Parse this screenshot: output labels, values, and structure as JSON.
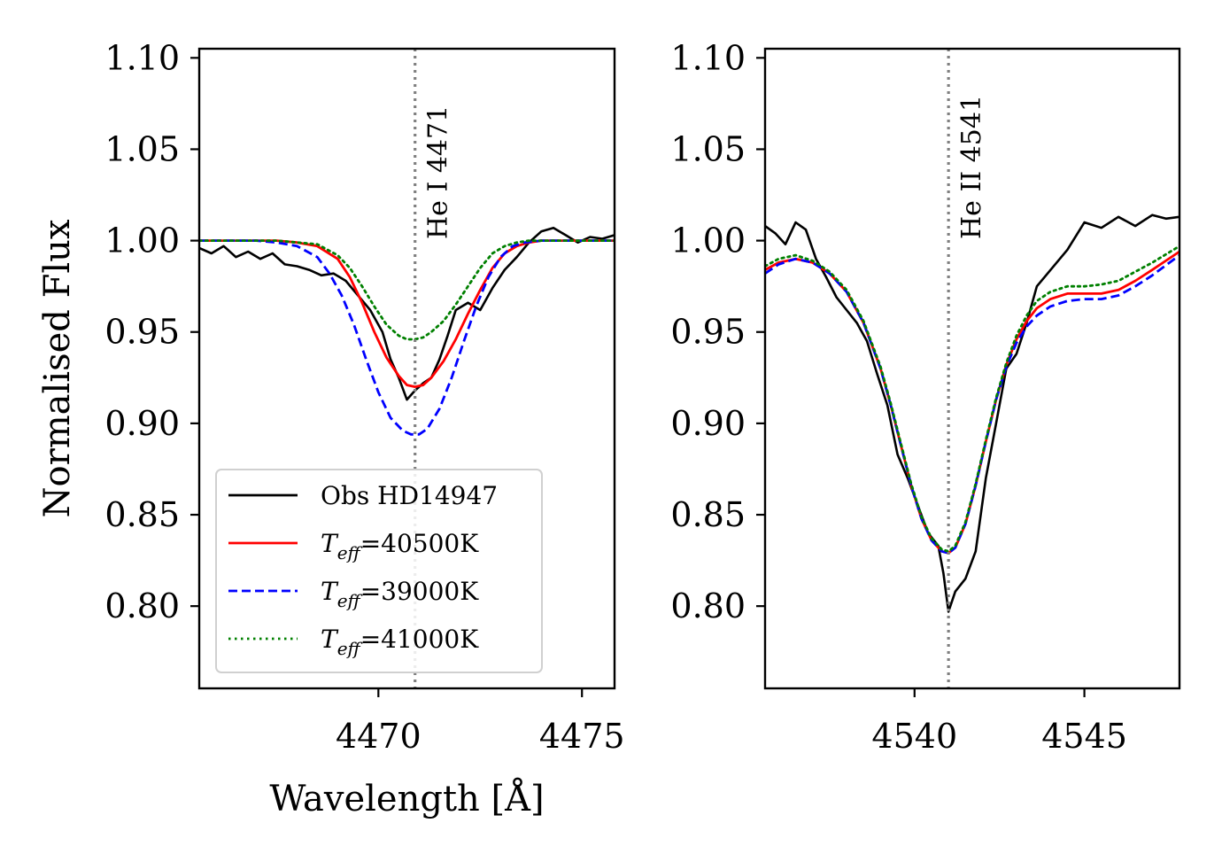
{
  "chart_data": [
    {
      "type": "line",
      "panel": "left",
      "xlabel": "Wavelength [Å]",
      "ylabel": "Normalised Flux",
      "xlim": [
        4465.6,
        4475.8
      ],
      "ylim": [
        0.755,
        1.105
      ],
      "xticks": [
        4470,
        4475
      ],
      "xtick_labels": [
        "4470",
        "4475"
      ],
      "yticks": [
        0.8,
        0.85,
        0.9,
        0.95,
        1.0,
        1.05,
        1.1
      ],
      "ytick_labels": [
        "0.80",
        "0.85",
        "0.90",
        "0.95",
        "1.00",
        "1.05",
        "1.10"
      ],
      "reference_line": {
        "x": 4470.9,
        "label": "He I 4471",
        "color": "#808080"
      },
      "legend": {
        "position": "lower-left",
        "entries": [
          {
            "series": "obs",
            "text": "Obs HD14947"
          },
          {
            "series": "t40500",
            "prefix": "T",
            "sub": "eff",
            "text": "=40500K"
          },
          {
            "series": "t39000",
            "prefix": "T",
            "sub": "eff",
            "text": "=39000K"
          },
          {
            "series": "t41000",
            "prefix": "T",
            "sub": "eff",
            "text": "=41000K"
          }
        ]
      },
      "series": [
        {
          "id": "obs",
          "name": "Obs HD14947",
          "color": "#000000",
          "style": "solid",
          "x": [
            4465.6,
            4465.9,
            4466.2,
            4466.5,
            4466.8,
            4467.1,
            4467.4,
            4467.7,
            4468.0,
            4468.3,
            4468.6,
            4468.9,
            4469.2,
            4469.5,
            4469.8,
            4470.1,
            4470.3,
            4470.5,
            4470.7,
            4470.9,
            4471.1,
            4471.3,
            4471.5,
            4471.7,
            4471.9,
            4472.2,
            4472.5,
            4472.8,
            4473.1,
            4473.4,
            4473.7,
            4474.0,
            4474.3,
            4474.6,
            4474.9,
            4475.2,
            4475.5,
            4475.8
          ],
          "values": [
            0.996,
            0.993,
            0.997,
            0.991,
            0.994,
            0.99,
            0.993,
            0.987,
            0.986,
            0.984,
            0.981,
            0.982,
            0.978,
            0.97,
            0.962,
            0.95,
            0.935,
            0.925,
            0.913,
            0.918,
            0.922,
            0.925,
            0.935,
            0.948,
            0.962,
            0.966,
            0.962,
            0.974,
            0.984,
            0.991,
            0.999,
            1.005,
            1.007,
            1.003,
            0.999,
            1.002,
            1.001,
            1.003
          ]
        },
        {
          "id": "t40500",
          "name": "Teff=40500K",
          "color": "#ff0000",
          "style": "solid",
          "x": [
            4465.6,
            4466.0,
            4466.5,
            4467.0,
            4467.5,
            4468.0,
            4468.5,
            4469.0,
            4469.3,
            4469.6,
            4469.9,
            4470.2,
            4470.5,
            4470.7,
            4470.9,
            4471.1,
            4471.3,
            4471.6,
            4471.9,
            4472.2,
            4472.5,
            4472.8,
            4473.1,
            4473.4,
            4473.7,
            4474.0,
            4474.5,
            4475.0,
            4475.8
          ],
          "values": [
            1.0,
            1.0,
            1.0,
            1.0,
            1.0,
            0.999,
            0.997,
            0.99,
            0.98,
            0.966,
            0.95,
            0.936,
            0.926,
            0.921,
            0.92,
            0.921,
            0.925,
            0.934,
            0.946,
            0.96,
            0.973,
            0.985,
            0.993,
            0.997,
            0.999,
            1.0,
            1.0,
            1.0,
            1.0
          ]
        },
        {
          "id": "t39000",
          "name": "Teff=39000K",
          "color": "#0000ff",
          "style": "dashed",
          "x": [
            4465.6,
            4466.0,
            4466.5,
            4467.0,
            4467.5,
            4468.0,
            4468.5,
            4468.8,
            4469.1,
            4469.4,
            4469.7,
            4470.0,
            4470.3,
            4470.6,
            4470.8,
            4471.0,
            4471.2,
            4471.5,
            4471.8,
            4472.1,
            4472.4,
            4472.7,
            4473.0,
            4473.3,
            4473.6,
            4474.0,
            4474.5,
            4475.0,
            4475.8
          ],
          "values": [
            1.0,
            1.0,
            1.0,
            1.0,
            0.999,
            0.997,
            0.991,
            0.982,
            0.97,
            0.954,
            0.935,
            0.917,
            0.903,
            0.896,
            0.894,
            0.894,
            0.897,
            0.908,
            0.925,
            0.945,
            0.964,
            0.98,
            0.991,
            0.997,
            0.999,
            1.0,
            1.0,
            1.0,
            1.0
          ]
        },
        {
          "id": "t41000",
          "name": "Teff=41000K",
          "color": "#008000",
          "style": "dotted",
          "x": [
            4465.6,
            4466.0,
            4466.5,
            4467.0,
            4467.5,
            4468.0,
            4468.5,
            4469.0,
            4469.3,
            4469.6,
            4469.9,
            4470.2,
            4470.5,
            4470.7,
            4470.9,
            4471.1,
            4471.3,
            4471.6,
            4471.9,
            4472.2,
            4472.5,
            4472.8,
            4473.1,
            4473.4,
            4473.7,
            4474.0,
            4474.5,
            4475.0,
            4475.8
          ],
          "values": [
            1.0,
            1.0,
            1.0,
            1.0,
            1.0,
            0.999,
            0.998,
            0.992,
            0.985,
            0.975,
            0.964,
            0.954,
            0.948,
            0.946,
            0.946,
            0.947,
            0.95,
            0.956,
            0.965,
            0.975,
            0.985,
            0.993,
            0.997,
            0.999,
            1.0,
            1.0,
            1.0,
            1.0,
            1.0
          ]
        }
      ]
    },
    {
      "type": "line",
      "panel": "right",
      "xlabel": "",
      "ylabel": "",
      "xlim": [
        4535.6,
        4547.8
      ],
      "ylim": [
        0.755,
        1.105
      ],
      "xticks": [
        4540,
        4545
      ],
      "xtick_labels": [
        "4540",
        "4545"
      ],
      "yticks": [
        0.8,
        0.85,
        0.9,
        0.95,
        1.0,
        1.05,
        1.1
      ],
      "ytick_labels": [
        "0.80",
        "0.85",
        "0.90",
        "0.95",
        "1.00",
        "1.05",
        "1.10"
      ],
      "reference_line": {
        "x": 4541.0,
        "label": "He II 4541",
        "color": "#808080"
      },
      "series": [
        {
          "id": "obs",
          "name": "Obs HD14947",
          "color": "#000000",
          "style": "solid",
          "x": [
            4535.6,
            4535.9,
            4536.2,
            4536.5,
            4536.8,
            4537.1,
            4537.4,
            4537.7,
            4538.0,
            4538.3,
            4538.6,
            4538.9,
            4539.2,
            4539.5,
            4539.8,
            4540.1,
            4540.4,
            4540.7,
            4540.85,
            4541.0,
            4541.2,
            4541.5,
            4541.8,
            4542.1,
            4542.4,
            4542.7,
            4543.0,
            4543.3,
            4543.6,
            4544.5,
            4545.0,
            4545.5,
            4546.0,
            4546.5,
            4547.0,
            4547.4,
            4547.8
          ],
          "values": [
            1.008,
            1.004,
            0.998,
            1.01,
            1.006,
            0.99,
            0.98,
            0.969,
            0.962,
            0.955,
            0.945,
            0.927,
            0.91,
            0.883,
            0.87,
            0.855,
            0.84,
            0.833,
            0.818,
            0.797,
            0.808,
            0.815,
            0.83,
            0.87,
            0.9,
            0.93,
            0.938,
            0.955,
            0.975,
            0.995,
            1.01,
            1.007,
            1.013,
            1.008,
            1.014,
            1.012,
            1.013
          ]
        },
        {
          "id": "t40500",
          "name": "Teff=40500K",
          "color": "#ff0000",
          "style": "solid",
          "x": [
            4535.6,
            4536.0,
            4536.5,
            4537.0,
            4537.5,
            4538.0,
            4538.5,
            4539.0,
            4539.3,
            4539.6,
            4539.9,
            4540.2,
            4540.5,
            4540.8,
            4541.0,
            4541.2,
            4541.5,
            4541.8,
            4542.1,
            4542.4,
            4542.7,
            4543.0,
            4543.3,
            4543.6,
            4544.0,
            4544.5,
            4545.0,
            4545.5,
            4546.0,
            4546.5,
            4547.0,
            4547.8
          ],
          "values": [
            0.984,
            0.988,
            0.99,
            0.988,
            0.982,
            0.972,
            0.955,
            0.93,
            0.91,
            0.888,
            0.866,
            0.848,
            0.836,
            0.83,
            0.829,
            0.832,
            0.845,
            0.866,
            0.89,
            0.913,
            0.932,
            0.946,
            0.956,
            0.963,
            0.968,
            0.971,
            0.971,
            0.971,
            0.973,
            0.978,
            0.984,
            0.994
          ]
        },
        {
          "id": "t39000",
          "name": "Teff=39000K",
          "color": "#0000ff",
          "style": "dashed",
          "x": [
            4535.6,
            4536.0,
            4536.5,
            4537.0,
            4537.5,
            4538.0,
            4538.5,
            4539.0,
            4539.3,
            4539.6,
            4539.9,
            4540.2,
            4540.5,
            4540.8,
            4541.0,
            4541.2,
            4541.5,
            4541.8,
            4542.1,
            4542.4,
            4542.7,
            4543.0,
            4543.3,
            4543.6,
            4544.0,
            4544.5,
            4545.0,
            4545.5,
            4546.0,
            4546.5,
            4547.0,
            4547.8
          ],
          "values": [
            0.982,
            0.987,
            0.99,
            0.988,
            0.982,
            0.972,
            0.955,
            0.93,
            0.91,
            0.888,
            0.866,
            0.848,
            0.836,
            0.83,
            0.829,
            0.832,
            0.845,
            0.866,
            0.89,
            0.913,
            0.931,
            0.944,
            0.953,
            0.959,
            0.964,
            0.967,
            0.968,
            0.968,
            0.97,
            0.975,
            0.981,
            0.992
          ]
        },
        {
          "id": "t41000",
          "name": "Teff=41000K",
          "color": "#008000",
          "style": "dotted",
          "x": [
            4535.6,
            4536.0,
            4536.5,
            4537.0,
            4537.5,
            4538.0,
            4538.5,
            4539.0,
            4539.3,
            4539.6,
            4539.9,
            4540.2,
            4540.5,
            4540.8,
            4541.0,
            4541.2,
            4541.5,
            4541.8,
            4542.1,
            4542.4,
            4542.7,
            4543.0,
            4543.3,
            4543.6,
            4544.0,
            4544.5,
            4545.0,
            4545.5,
            4546.0,
            4546.5,
            4547.0,
            4547.8
          ],
          "values": [
            0.986,
            0.99,
            0.992,
            0.989,
            0.983,
            0.973,
            0.956,
            0.931,
            0.911,
            0.889,
            0.867,
            0.849,
            0.837,
            0.831,
            0.83,
            0.833,
            0.846,
            0.867,
            0.891,
            0.914,
            0.933,
            0.948,
            0.959,
            0.967,
            0.972,
            0.975,
            0.975,
            0.976,
            0.978,
            0.983,
            0.988,
            0.997
          ]
        }
      ]
    }
  ]
}
